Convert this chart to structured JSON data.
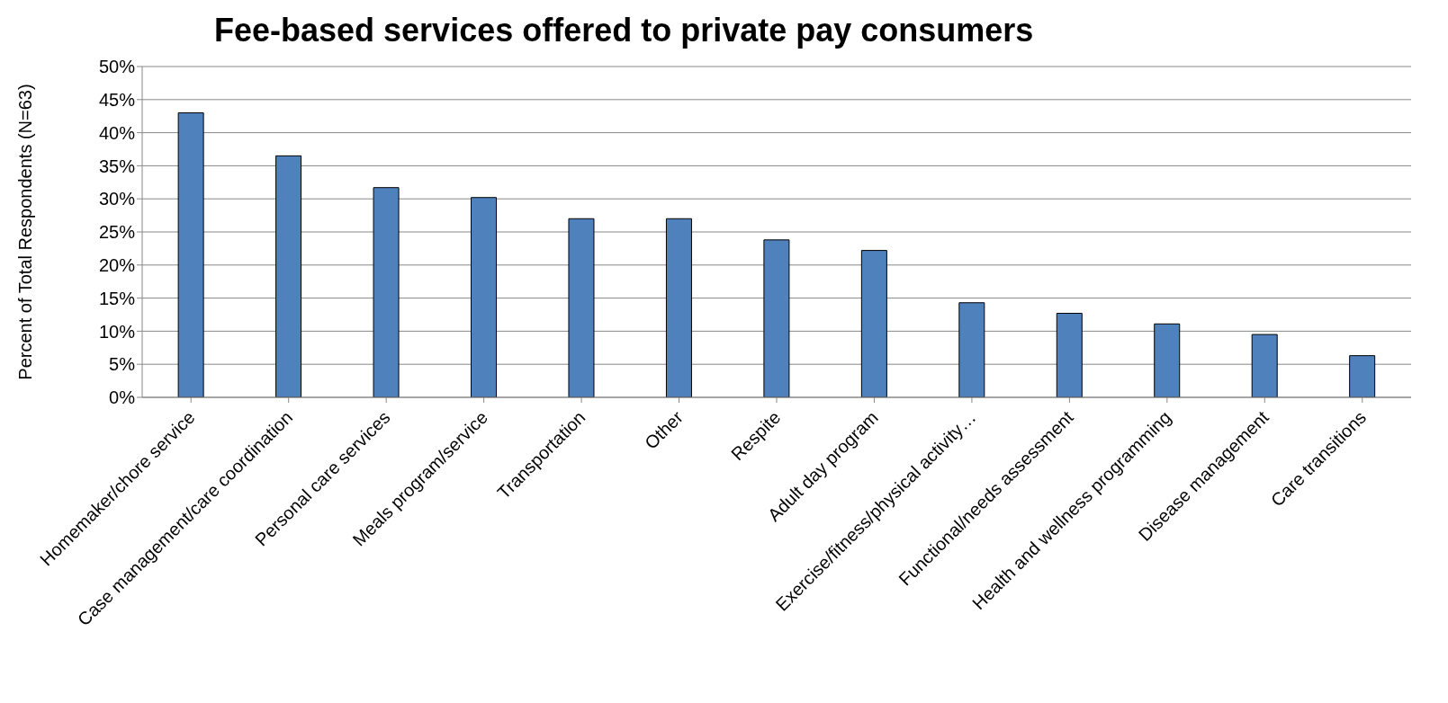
{
  "chart_data": {
    "type": "bar",
    "title": "Fee-based services offered to private pay consumers",
    "ylabel": "Percent of Total Respondents    (N=63)",
    "categories": [
      "Homemaker/chore service",
      "Case management/care coordination",
      "Personal care services",
      "Meals program/service",
      "Transportation",
      "Other",
      "Respite",
      "Adult day program",
      "Exercise/fitness/physical activity…",
      "Functional/needs assessment",
      "Health and wellness programming",
      "Disease management",
      "Care transitions"
    ],
    "values": [
      43,
      36.5,
      31.7,
      30.2,
      27,
      27,
      23.8,
      22.2,
      14.3,
      12.7,
      11.1,
      9.5,
      6.3
    ],
    "color": "#4f81bd",
    "ylim": [
      0,
      50
    ],
    "yticks": [
      {
        "value": 0,
        "label": "0%"
      },
      {
        "value": 5,
        "label": "5%"
      },
      {
        "value": 10,
        "label": "10%"
      },
      {
        "value": 15,
        "label": "15%"
      },
      {
        "value": 20,
        "label": "20%"
      },
      {
        "value": 25,
        "label": "25%"
      },
      {
        "value": 30,
        "label": "30%"
      },
      {
        "value": 35,
        "label": "35%"
      },
      {
        "value": 40,
        "label": "40%"
      },
      {
        "value": 45,
        "label": "45%"
      },
      {
        "value": 50,
        "label": "50%"
      }
    ],
    "grid": "y",
    "legend": false
  }
}
